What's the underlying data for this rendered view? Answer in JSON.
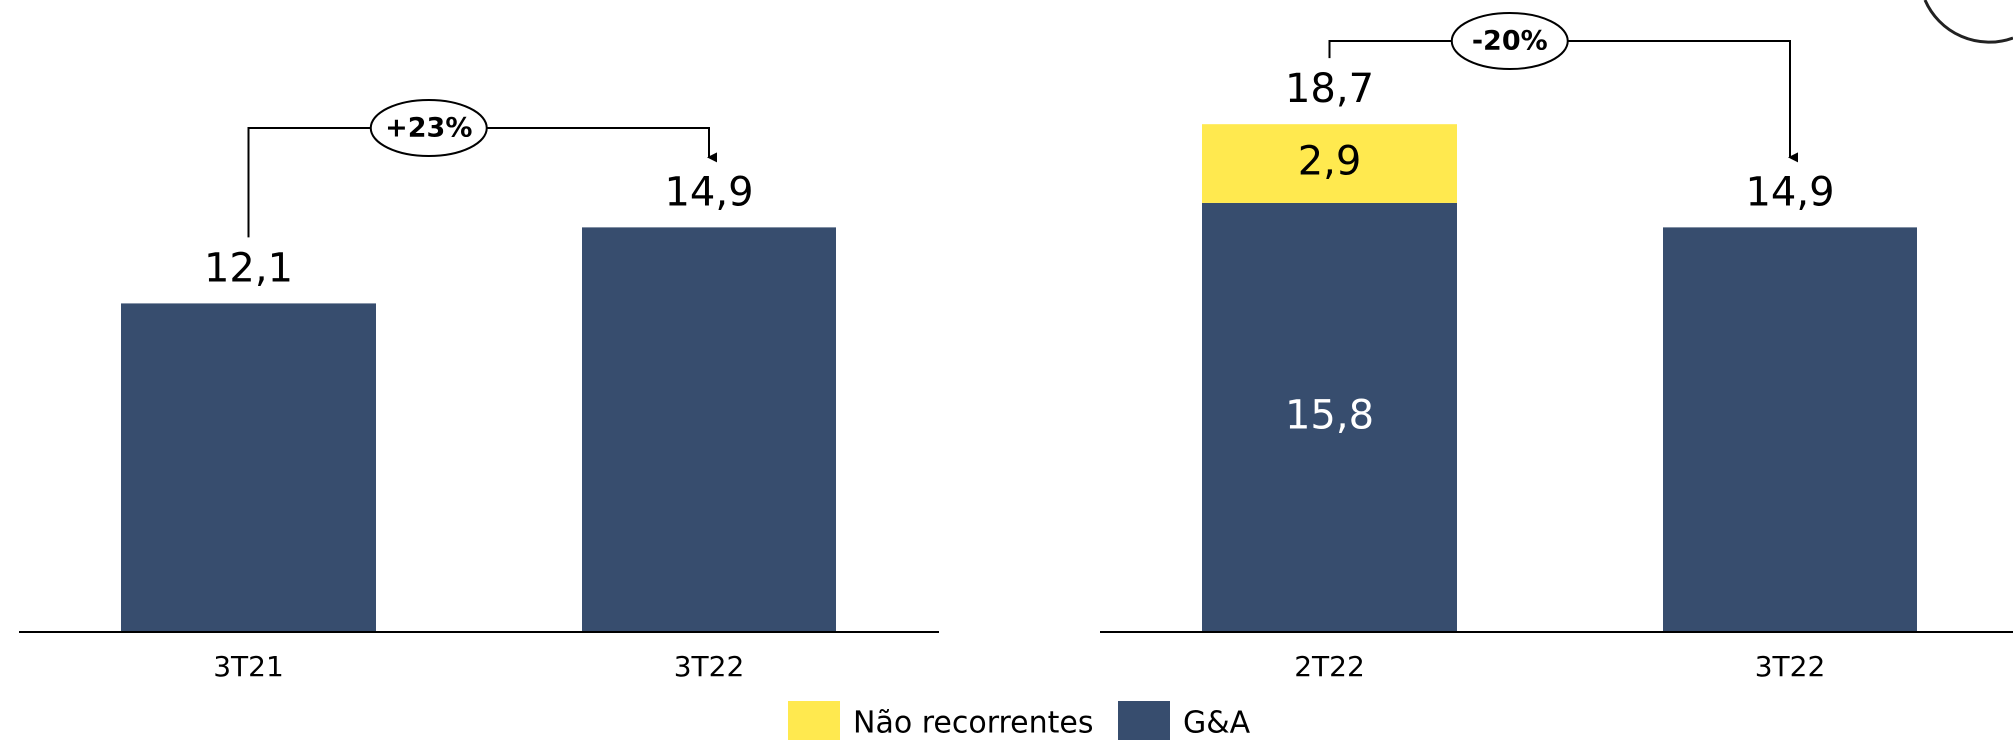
{
  "chart_data": [
    {
      "type": "bar",
      "categories": [
        "3T21",
        "3T22"
      ],
      "series": [
        {
          "name": "G&A",
          "color": "#374d6e",
          "values": [
            12.1,
            14.9
          ],
          "value_labels": [
            "12,1",
            "14,9"
          ]
        }
      ],
      "annotation": "+23%",
      "ylim": [
        0,
        21.8
      ]
    },
    {
      "type": "stacked_bar",
      "categories": [
        "2T22",
        "3T22"
      ],
      "series": [
        {
          "name": "Não recorrentes",
          "color": "#ffe94f",
          "values": [
            2.9,
            null
          ],
          "value_labels": [
            "2,9",
            null
          ]
        },
        {
          "name": "G&A",
          "color": "#374d6e",
          "values": [
            15.8,
            14.9
          ],
          "value_labels": [
            "15,8",
            "14,9"
          ]
        }
      ],
      "totals": [
        18.7,
        null
      ],
      "total_labels": [
        "18,7",
        null
      ],
      "annotation": "-20%",
      "ylim": [
        0,
        21.8
      ]
    }
  ]
}
